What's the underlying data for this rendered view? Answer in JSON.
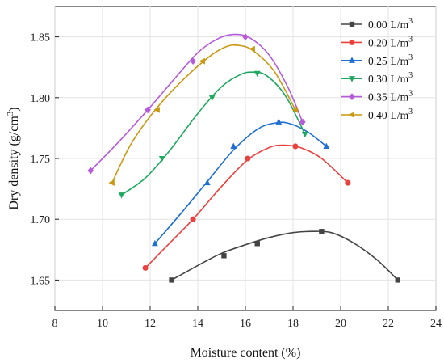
{
  "chart_data": {
    "type": "scatter",
    "xlabel": "Moisture content (%)",
    "ylabel_main": "Dry density (g/cm",
    "ylabel_sup": "3",
    "ylabel_end": ")",
    "xlim": [
      8,
      24
    ],
    "ylim": [
      1.625,
      1.875
    ],
    "xticks": [
      8,
      10,
      12,
      14,
      16,
      18,
      20,
      22,
      24
    ],
    "yticks": [
      1.65,
      1.7,
      1.75,
      1.8,
      1.85
    ],
    "ytick_labels": [
      "1.65",
      "1.70",
      "1.75",
      "1.80",
      "1.85"
    ],
    "legend_position": "top-right",
    "legend_unit": "L/m",
    "legend_unit_sup": "3",
    "series": [
      {
        "name": "0.00",
        "color": "#444444",
        "marker": "square",
        "points": [
          [
            12.9,
            1.65
          ],
          [
            15.1,
            1.67
          ],
          [
            16.5,
            1.68
          ],
          [
            19.2,
            1.69
          ],
          [
            22.4,
            1.65
          ]
        ],
        "curve": [
          [
            12.9,
            1.65
          ],
          [
            14.0,
            1.662
          ],
          [
            15.0,
            1.672
          ],
          [
            16.0,
            1.679
          ],
          [
            17.0,
            1.685
          ],
          [
            18.0,
            1.689
          ],
          [
            18.8,
            1.69
          ],
          [
            19.6,
            1.689
          ],
          [
            20.5,
            1.681
          ],
          [
            21.5,
            1.667
          ],
          [
            22.4,
            1.65
          ]
        ]
      },
      {
        "name": "0.20",
        "color": "#e8413e",
        "marker": "circle",
        "points": [
          [
            11.8,
            1.66
          ],
          [
            13.8,
            1.7
          ],
          [
            16.1,
            1.75
          ],
          [
            18.1,
            1.76
          ],
          [
            20.3,
            1.73
          ]
        ],
        "curve": [
          [
            11.8,
            1.66
          ],
          [
            12.8,
            1.68
          ],
          [
            13.8,
            1.7
          ],
          [
            15.0,
            1.727
          ],
          [
            16.1,
            1.749
          ],
          [
            17.0,
            1.759
          ],
          [
            17.6,
            1.761
          ],
          [
            18.3,
            1.759
          ],
          [
            19.2,
            1.75
          ],
          [
            20.3,
            1.73
          ]
        ]
      },
      {
        "name": "0.25",
        "color": "#1f6fd0",
        "marker": "triangle-up",
        "points": [
          [
            12.2,
            1.68
          ],
          [
            14.4,
            1.73
          ],
          [
            15.5,
            1.76
          ],
          [
            17.4,
            1.78
          ],
          [
            19.4,
            1.76
          ]
        ],
        "curve": [
          [
            12.2,
            1.68
          ],
          [
            13.3,
            1.705
          ],
          [
            14.4,
            1.731
          ],
          [
            15.5,
            1.757
          ],
          [
            16.5,
            1.774
          ],
          [
            17.2,
            1.779
          ],
          [
            17.8,
            1.779
          ],
          [
            18.6,
            1.772
          ],
          [
            19.4,
            1.76
          ]
        ]
      },
      {
        "name": "0.30",
        "color": "#1fa860",
        "marker": "triangle-down",
        "points": [
          [
            10.8,
            1.72
          ],
          [
            12.5,
            1.75
          ],
          [
            14.6,
            1.8
          ],
          [
            16.5,
            1.82
          ],
          [
            18.5,
            1.77
          ]
        ],
        "curve": [
          [
            10.8,
            1.72
          ],
          [
            11.8,
            1.734
          ],
          [
            12.8,
            1.756
          ],
          [
            14.0,
            1.787
          ],
          [
            15.0,
            1.809
          ],
          [
            15.8,
            1.819
          ],
          [
            16.3,
            1.821
          ],
          [
            16.9,
            1.818
          ],
          [
            17.7,
            1.801
          ],
          [
            18.5,
            1.77
          ]
        ]
      },
      {
        "name": "0.35",
        "color": "#b55ad8",
        "marker": "diamond",
        "points": [
          [
            9.5,
            1.74
          ],
          [
            11.9,
            1.79
          ],
          [
            13.8,
            1.83
          ],
          [
            16.0,
            1.85
          ],
          [
            18.4,
            1.78
          ]
        ],
        "curve": [
          [
            9.5,
            1.74
          ],
          [
            10.7,
            1.764
          ],
          [
            11.9,
            1.79
          ],
          [
            13.0,
            1.815
          ],
          [
            14.0,
            1.837
          ],
          [
            14.8,
            1.848
          ],
          [
            15.5,
            1.852
          ],
          [
            16.2,
            1.849
          ],
          [
            17.0,
            1.835
          ],
          [
            17.8,
            1.808
          ],
          [
            18.4,
            1.78
          ]
        ]
      },
      {
        "name": "0.40",
        "color": "#c9980f",
        "marker": "triangle-left",
        "points": [
          [
            10.4,
            1.73
          ],
          [
            12.3,
            1.79
          ],
          [
            14.2,
            1.83
          ],
          [
            16.3,
            1.84
          ],
          [
            18.1,
            1.79
          ]
        ],
        "curve": [
          [
            10.4,
            1.73
          ],
          [
            11.2,
            1.762
          ],
          [
            12.3,
            1.792
          ],
          [
            13.4,
            1.815
          ],
          [
            14.5,
            1.834
          ],
          [
            15.2,
            1.842
          ],
          [
            15.7,
            1.843
          ],
          [
            16.3,
            1.839
          ],
          [
            17.2,
            1.822
          ],
          [
            18.1,
            1.79
          ]
        ]
      }
    ]
  }
}
